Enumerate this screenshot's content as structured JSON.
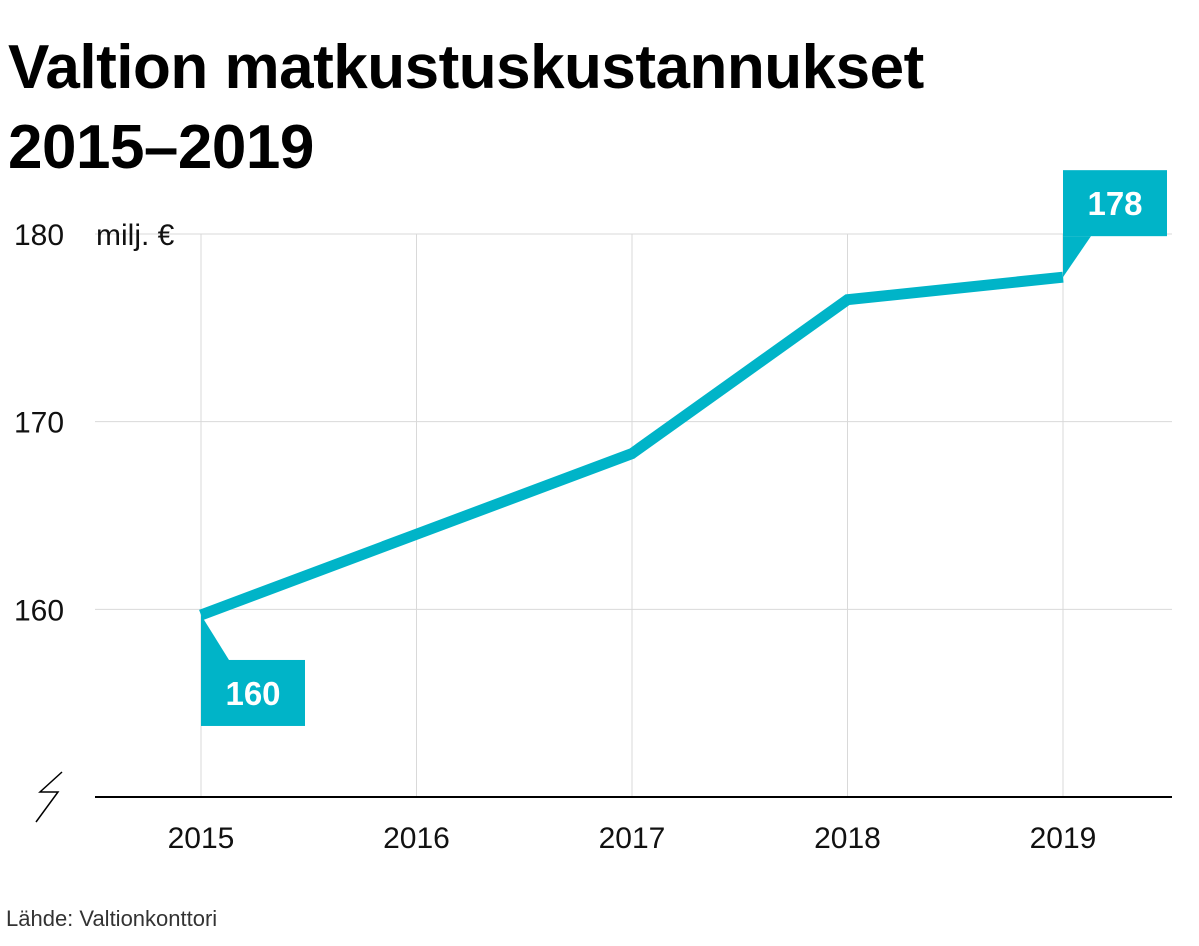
{
  "title": "Valtion matkustuskustannukset\n2015–2019",
  "source": "Lähde: Valtionkonttori",
  "colors": {
    "line": "#00b4c8",
    "grid": "#d9d9d9",
    "axis": "#000000"
  },
  "chart_data": {
    "type": "line",
    "title": "Valtion matkustuskustannukset 2015–2019",
    "unit_label": "milj. €",
    "categories": [
      "2015",
      "2016",
      "2017",
      "2018",
      "2019"
    ],
    "series": [
      {
        "values": [
          159.7,
          164.0,
          168.3,
          176.5,
          177.7
        ]
      }
    ],
    "ylim": [
      150,
      180
    ],
    "yticks": [
      160,
      170,
      180
    ],
    "axis_break": true,
    "grid": true,
    "annotations": [
      {
        "category": "2015",
        "label": "160",
        "position": "below-right"
      },
      {
        "category": "2019",
        "label": "178",
        "position": "above-right"
      }
    ]
  }
}
